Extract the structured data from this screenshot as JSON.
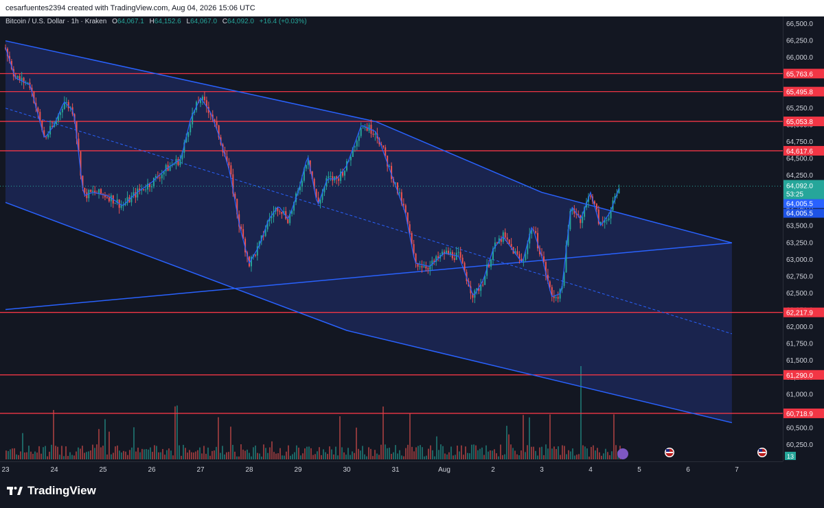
{
  "header": {
    "attribution": "cesarfuentes2394 created with TradingView.com, Aug 04, 2026 15:06 UTC"
  },
  "legend": {
    "symbol": "Bitcoin / U.S. Dollar · 1h · Kraken",
    "open_label": "O",
    "open": "64,067.1",
    "high_label": "H",
    "high": "64,152.6",
    "low_label": "L",
    "low": "64,067.0",
    "close_label": "C",
    "close": "64,092.0",
    "change": "+16.4 (+0.03%)"
  },
  "footer": {
    "brand": "TradingView"
  },
  "colors": {
    "up": "#26a69a",
    "down": "#ef5350",
    "channel": "#2962ff",
    "level": "#f23645",
    "channel_fill": "#1e2a5e"
  },
  "price_tags": {
    "last": "64,092.0",
    "countdown": "53:25",
    "ma1": "64,005.5",
    "ma2": "64,005.5",
    "bottom_badge": "13"
  },
  "chart_data": {
    "type": "candlestick",
    "x_tick_labels": [
      "23",
      "24",
      "25",
      "26",
      "27",
      "28",
      "29",
      "30",
      "31",
      "Aug",
      "2",
      "3",
      "4",
      "5",
      "6",
      "7"
    ],
    "y_tick_labels": [
      "66,500.0",
      "66,250.0",
      "66,000.0",
      "65,750.0",
      "65,500.0",
      "65,250.0",
      "65,000.0",
      "64,750.0",
      "64,500.0",
      "64,250.0",
      "64,000.0",
      "63,750.0",
      "63,500.0",
      "63,250.0",
      "63,000.0",
      "62,750.0",
      "62,500.0",
      "62,250.0",
      "62,000.0",
      "61,750.0",
      "61,500.0",
      "61,250.0",
      "61,000.0",
      "60,750.0",
      "60,500.0",
      "60,250.0"
    ],
    "ylim": [
      60200,
      66600
    ],
    "horizontal_levels": [
      65763.6,
      65495.8,
      65053.8,
      64617.6,
      62217.9,
      61290.0,
      60718.9
    ],
    "horizontal_level_labels": [
      "65,763.6",
      "65,495.8",
      "65,053.8",
      "64,617.6",
      "62,217.9",
      "61,290.0",
      "60,718.9"
    ],
    "channel_upper": [
      [
        23.0,
        66250
      ],
      [
        30.6,
        65050
      ],
      [
        34.0,
        64000
      ],
      [
        37.9,
        63250
      ]
    ],
    "channel_lower": [
      [
        23.0,
        63850
      ],
      [
        30.0,
        61950
      ],
      [
        37.9,
        60580
      ]
    ],
    "channel_mid": [
      [
        23.0,
        65250
      ],
      [
        37.9,
        61900
      ]
    ],
    "ascending_trendline": [
      [
        23.0,
        62260
      ],
      [
        37.9,
        63250
      ]
    ],
    "price_path": [
      [
        23.0,
        66150
      ],
      [
        23.2,
        65700
      ],
      [
        23.5,
        65600
      ],
      [
        23.8,
        64800
      ],
      [
        24.0,
        65000
      ],
      [
        24.2,
        65350
      ],
      [
        24.4,
        65200
      ],
      [
        24.6,
        63950
      ],
      [
        24.8,
        64000
      ],
      [
        25.1,
        63950
      ],
      [
        25.4,
        63800
      ],
      [
        25.7,
        64000
      ],
      [
        26.0,
        64150
      ],
      [
        26.3,
        64350
      ],
      [
        26.6,
        64500
      ],
      [
        26.8,
        65100
      ],
      [
        27.0,
        65400
      ],
      [
        27.2,
        65200
      ],
      [
        27.4,
        64800
      ],
      [
        27.6,
        64300
      ],
      [
        27.8,
        63500
      ],
      [
        28.0,
        62950
      ],
      [
        28.2,
        63200
      ],
      [
        28.4,
        63600
      ],
      [
        28.6,
        63800
      ],
      [
        28.8,
        63600
      ],
      [
        29.0,
        64000
      ],
      [
        29.2,
        64550
      ],
      [
        29.4,
        63800
      ],
      [
        29.6,
        64200
      ],
      [
        29.8,
        64200
      ],
      [
        30.0,
        64400
      ],
      [
        30.3,
        65000
      ],
      [
        30.6,
        64900
      ],
      [
        30.9,
        64300
      ],
      [
        31.2,
        63700
      ],
      [
        31.4,
        62950
      ],
      [
        31.7,
        62900
      ],
      [
        32.0,
        63100
      ],
      [
        32.3,
        63050
      ],
      [
        32.6,
        62450
      ],
      [
        32.8,
        62700
      ],
      [
        33.0,
        63150
      ],
      [
        33.2,
        63350
      ],
      [
        33.4,
        63150
      ],
      [
        33.6,
        62950
      ],
      [
        33.8,
        63500
      ],
      [
        34.0,
        63050
      ],
      [
        34.2,
        62450
      ],
      [
        34.4,
        62500
      ],
      [
        34.6,
        63800
      ],
      [
        34.8,
        63600
      ],
      [
        35.0,
        64000
      ],
      [
        35.2,
        63500
      ],
      [
        35.4,
        63700
      ],
      [
        35.6,
        64092
      ]
    ]
  }
}
